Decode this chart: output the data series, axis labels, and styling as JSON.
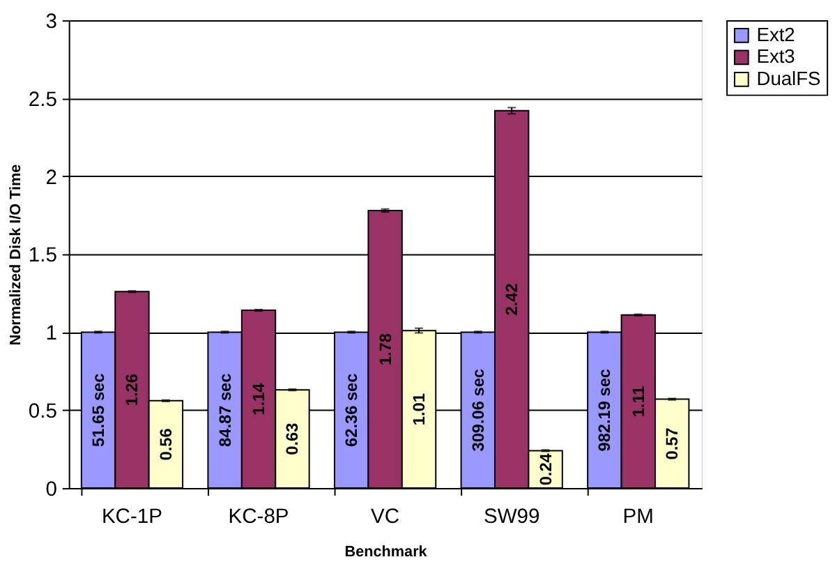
{
  "chart_data": {
    "type": "bar",
    "xlabel": "Benchmark",
    "ylabel": "Normalized Disk I/O Time",
    "categories": [
      "KC-1P",
      "KC-8P",
      "VC",
      "SW99",
      "PM"
    ],
    "series": [
      {
        "name": "Ext2",
        "color": "#9999ff",
        "values": [
          1,
          1,
          1,
          1,
          1
        ],
        "errors": [
          0.005,
          0.005,
          0.005,
          0.005,
          0.005
        ]
      },
      {
        "name": "Ext3",
        "color": "#993366",
        "values": [
          1.26,
          1.14,
          1.78,
          2.42,
          1.11
        ],
        "errors": [
          0.005,
          0.005,
          0.01,
          0.02,
          0.005
        ],
        "value_labels": [
          "1.26",
          "1.14",
          "1.78",
          "2.42",
          "1.11"
        ]
      },
      {
        "name": "DualFS",
        "color": "#ffffcc",
        "values": [
          0.56,
          0.63,
          1.01,
          0.24,
          0.57
        ],
        "errors": [
          0.005,
          0.005,
          0.015,
          0.005,
          0.005
        ],
        "value_labels": [
          "0.56",
          "0.63",
          "1.01",
          "0.24",
          "0.57"
        ]
      }
    ],
    "annotations": [
      "51.65 sec",
      "84.87 sec",
      "62.36 sec",
      "309.06 sec",
      "982.19 sec"
    ],
    "ylim": [
      0,
      3
    ],
    "yticks": [
      0,
      0.5,
      1,
      1.5,
      2,
      2.5,
      3
    ],
    "grid": "y",
    "legend": "right"
  }
}
